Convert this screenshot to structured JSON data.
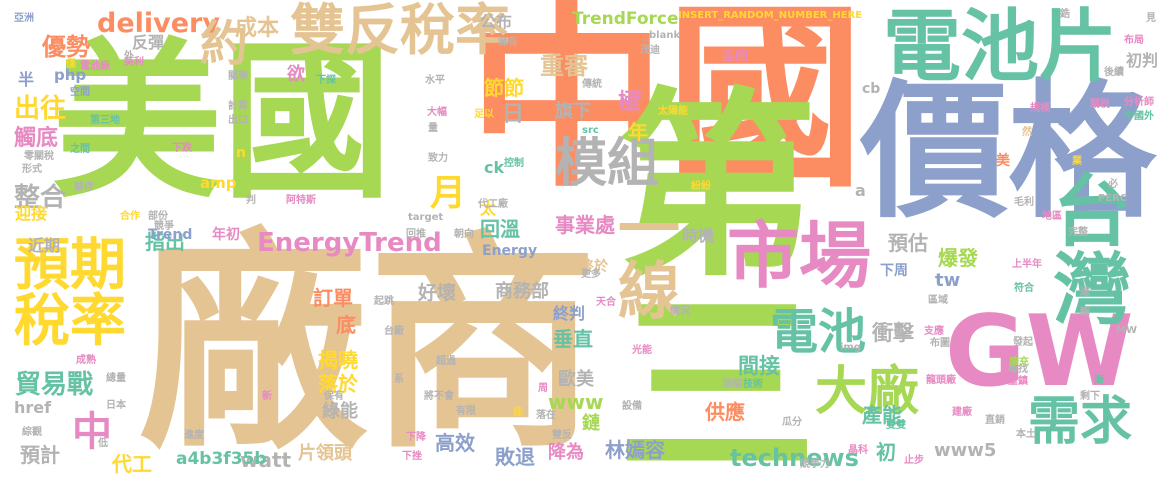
{
  "palette": {
    "orange": "#fc8d62",
    "green": "#a6d854",
    "blue": "#8da0cb",
    "teal": "#66c2a5",
    "pink": "#e78ac3",
    "yellow": "#ffd92f",
    "tan": "#e5c494",
    "gray": "#b3b3b3"
  },
  "words": [
    {
      "text": "中國",
      "color": "orange"
    },
    {
      "text": "廠商",
      "color": "tan"
    },
    {
      "text": "美國",
      "color": "green"
    },
    {
      "text": "價格",
      "color": "blue"
    },
    {
      "text": "第三",
      "color": "green"
    },
    {
      "text": "GW",
      "color": "pink"
    },
    {
      "text": "電池片",
      "color": "teal"
    },
    {
      "text": "台灣",
      "color": "teal"
    },
    {
      "text": "市場",
      "color": "pink"
    },
    {
      "text": "一線",
      "color": "tan"
    },
    {
      "text": "雙反稅率",
      "color": "tan"
    },
    {
      "text": "模組",
      "color": "gray"
    },
    {
      "text": "預期",
      "color": "yellow"
    },
    {
      "text": "稅率",
      "color": "yellow"
    },
    {
      "text": "需求",
      "color": "teal"
    },
    {
      "text": "電池",
      "color": "teal"
    },
    {
      "text": "大廠",
      "color": "green"
    },
    {
      "text": "EnergyTrend",
      "color": "pink"
    },
    {
      "text": "delivery",
      "color": "orange"
    },
    {
      "text": "約",
      "color": "tan"
    },
    {
      "text": "月",
      "color": "yellow"
    },
    {
      "text": "中",
      "color": "pink"
    },
    {
      "text": "優勢",
      "color": "orange"
    },
    {
      "text": "出往",
      "color": "yellow"
    },
    {
      "text": "整合",
      "color": "gray"
    },
    {
      "text": "貿易戰",
      "color": "teal"
    },
    {
      "text": "technews",
      "color": "teal"
    },
    {
      "text": "TrendForce",
      "color": "green"
    },
    {
      "text": "成本",
      "color": "tan"
    },
    {
      "text": "重審",
      "color": "tan"
    },
    {
      "text": "極",
      "color": "pink"
    },
    {
      "text": "年",
      "color": "yellow"
    },
    {
      "text": "日",
      "color": "gray"
    },
    {
      "text": "節節",
      "color": "yellow"
    },
    {
      "text": "旗下",
      "color": "gray"
    },
    {
      "text": "事業處",
      "color": "pink"
    },
    {
      "text": "回溫",
      "color": "teal"
    },
    {
      "text": "指出",
      "color": "teal"
    },
    {
      "text": "預估",
      "color": "gray"
    },
    {
      "text": "爆發",
      "color": "green"
    },
    {
      "text": "衝擊",
      "color": "gray"
    },
    {
      "text": "產能",
      "color": "teal"
    },
    {
      "text": "間接",
      "color": "teal"
    },
    {
      "text": "供應",
      "color": "orange"
    },
    {
      "text": "初",
      "color": "teal"
    },
    {
      "text": "商務部",
      "color": "gray"
    },
    {
      "text": "好壞",
      "color": "gray"
    },
    {
      "text": "訂單",
      "color": "orange"
    },
    {
      "text": "底",
      "color": "orange"
    },
    {
      "text": "揭曉",
      "color": "yellow"
    },
    {
      "text": "落於",
      "color": "yellow"
    },
    {
      "text": "綠能",
      "color": "gray"
    },
    {
      "text": "片領頭",
      "color": "tan"
    },
    {
      "text": "watt",
      "color": "gray"
    },
    {
      "text": "a4b3f35b",
      "color": "teal"
    },
    {
      "text": "代工",
      "color": "yellow"
    },
    {
      "text": "預計",
      "color": "gray"
    },
    {
      "text": "高效",
      "color": "blue"
    },
    {
      "text": "敗退",
      "color": "blue"
    },
    {
      "text": "降為",
      "color": "pink"
    },
    {
      "text": "林嫣容",
      "color": "blue"
    },
    {
      "text": "垂直",
      "color": "teal"
    },
    {
      "text": "終判",
      "color": "blue"
    },
    {
      "text": "歐美",
      "color": "gray"
    },
    {
      "text": "www",
      "color": "green"
    },
    {
      "text": "www5",
      "color": "gray"
    },
    {
      "text": "tw",
      "color": "blue"
    },
    {
      "text": "下周",
      "color": "blue"
    },
    {
      "text": "時機",
      "color": "gray"
    },
    {
      "text": "年初",
      "color": "pink"
    },
    {
      "text": "Trend",
      "color": "blue"
    },
    {
      "text": "Energy",
      "color": "blue"
    },
    {
      "text": "ck",
      "color": "teal"
    },
    {
      "text": "amp",
      "color": "yellow"
    },
    {
      "text": "php",
      "color": "blue"
    },
    {
      "text": "半",
      "color": "blue"
    },
    {
      "text": "反彈",
      "color": "gray"
    },
    {
      "text": "觸底",
      "color": "pink"
    },
    {
      "text": "迎接",
      "color": "yellow"
    },
    {
      "text": "近期",
      "color": "gray"
    },
    {
      "text": "href",
      "color": "gray"
    },
    {
      "text": "公布",
      "color": "gray"
    },
    {
      "text": "初判",
      "color": "gray"
    },
    {
      "text": "區間",
      "color": "pink"
    },
    {
      "text": "cb",
      "color": "gray"
    },
    {
      "text": "美",
      "color": "orange"
    },
    {
      "text": "a",
      "color": "gray"
    },
    {
      "text": "n",
      "color": "yellow"
    },
    {
      "text": "太",
      "color": "yellow"
    },
    {
      "text": "鏈",
      "color": "green"
    },
    {
      "text": "終於",
      "color": "tan"
    },
    {
      "text": "INSERT_RANDOM_NUMBER_HERE",
      "color": "yellow"
    },
    {
      "text": "_blank",
      "color": "gray"
    },
    {
      "text": "茂迪",
      "color": "gray"
    },
    {
      "text": "亞洲",
      "color": "blue"
    },
    {
      "text": "電池廠",
      "color": "pink"
    },
    {
      "text": "英利",
      "color": "pink"
    },
    {
      "text": "關聯",
      "color": "gray"
    },
    {
      "text": "外",
      "color": "gray"
    },
    {
      "text": "僅",
      "color": "yellow"
    },
    {
      "text": "空間",
      "color": "blue"
    },
    {
      "text": "計算",
      "color": "gray"
    },
    {
      "text": "出口",
      "color": "gray"
    },
    {
      "text": "第三地",
      "color": "teal"
    },
    {
      "text": "下跌",
      "color": "pink"
    },
    {
      "text": "之間",
      "color": "teal"
    },
    {
      "text": "形式",
      "color": "gray"
    },
    {
      "text": "夥伴",
      "color": "gray"
    },
    {
      "text": "零關稅",
      "color": "gray"
    },
    {
      "text": "合作",
      "color": "yellow"
    },
    {
      "text": "部份",
      "color": "gray"
    },
    {
      "text": "判",
      "color": "gray"
    },
    {
      "text": "阿特斯",
      "color": "pink"
    },
    {
      "text": "競爭",
      "color": "gray"
    },
    {
      "text": "欲",
      "color": "pink"
    },
    {
      "text": "水平",
      "color": "gray"
    },
    {
      "text": "下探",
      "color": "teal"
    },
    {
      "text": "大幅",
      "color": "pink"
    },
    {
      "text": "足以",
      "color": "yellow"
    },
    {
      "text": "量",
      "color": "gray"
    },
    {
      "text": "致力",
      "color": "gray"
    },
    {
      "text": "控制",
      "color": "teal"
    },
    {
      "text": "更多",
      "color": "gray"
    },
    {
      "text": "代工廠",
      "color": "gray"
    },
    {
      "text": "朝向",
      "color": "gray"
    },
    {
      "text": "回推",
      "color": "gray"
    },
    {
      "text": "target",
      "color": "gray"
    },
    {
      "text": "擁有",
      "color": "gray"
    },
    {
      "text": "傳統",
      "color": "gray"
    },
    {
      "text": "太陽能",
      "color": "yellow"
    },
    {
      "text": "主",
      "color": "pink"
    },
    {
      "text": "src",
      "color": "teal"
    },
    {
      "text": "紛紛",
      "color": "yellow"
    },
    {
      "text": "見",
      "color": "gray"
    },
    {
      "text": "布局",
      "color": "pink"
    },
    {
      "text": "後續",
      "color": "gray"
    },
    {
      "text": "分析師",
      "color": "pink"
    },
    {
      "text": "中國外",
      "color": "teal"
    },
    {
      "text": "關稅",
      "color": "pink"
    },
    {
      "text": "規模",
      "color": "pink"
    },
    {
      "text": "然",
      "color": "tan"
    },
    {
      "text": "業",
      "color": "yellow"
    },
    {
      "text": "必",
      "color": "gray"
    },
    {
      "text": "PERC",
      "color": "gray"
    },
    {
      "text": "毛利",
      "color": "gray"
    },
    {
      "text": "地區",
      "color": "pink"
    },
    {
      "text": "完整",
      "color": "gray"
    },
    {
      "text": "鋯",
      "color": "gray"
    },
    {
      "text": "上半年",
      "color": "pink"
    },
    {
      "text": "區域",
      "color": "gray"
    },
    {
      "text": "符合",
      "color": "teal"
    },
    {
      "text": "達",
      "color": "gray"
    },
    {
      "text": "輸",
      "color": "gray"
    },
    {
      "text": "MW",
      "color": "gray"
    },
    {
      "text": "支應",
      "color": "pink"
    },
    {
      "text": "布圖",
      "color": "gray"
    },
    {
      "text": "發起",
      "color": "gray"
    },
    {
      "text": "尋找",
      "color": "gray"
    },
    {
      "text": "擴充",
      "color": "green"
    },
    {
      "text": "重鎮",
      "color": "pink"
    },
    {
      "text": "龍頭廠",
      "color": "pink"
    },
    {
      "text": "漸",
      "color": "teal"
    },
    {
      "text": "剩下",
      "color": "gray"
    },
    {
      "text": "建廠",
      "color": "pink"
    },
    {
      "text": "直銷",
      "color": "gray"
    },
    {
      "text": "本土",
      "color": "gray"
    },
    {
      "text": "雙雙",
      "color": "teal"
    },
    {
      "text": "晶科",
      "color": "pink"
    },
    {
      "text": "止步",
      "color": "pink"
    },
    {
      "text": "競爭力",
      "color": "gray"
    },
    {
      "text": "雙反",
      "color": "gray"
    },
    {
      "text": "瓜分",
      "color": "gray"
    },
    {
      "text": "設備",
      "color": "gray"
    },
    {
      "text": "落在",
      "color": "gray"
    },
    {
      "text": "佳",
      "color": "yellow"
    },
    {
      "text": "周",
      "color": "pink"
    },
    {
      "text": "漲幅",
      "color": "gray"
    },
    {
      "text": "技術",
      "color": "teal"
    },
    {
      "text": "光能",
      "color": "pink"
    },
    {
      "text": "情況",
      "color": "gray"
    },
    {
      "text": "天合",
      "color": "pink"
    },
    {
      "text": "起跳",
      "color": "gray"
    },
    {
      "text": "台廠",
      "color": "gray"
    },
    {
      "text": "超過",
      "color": "gray"
    },
    {
      "text": "將不會",
      "color": "gray"
    },
    {
      "text": "有限",
      "color": "gray"
    },
    {
      "text": "保有",
      "color": "gray"
    },
    {
      "text": "系",
      "color": "gray"
    },
    {
      "text": "新",
      "color": "pink"
    },
    {
      "text": "下降",
      "color": "pink"
    },
    {
      "text": "下挫",
      "color": "pink"
    },
    {
      "text": "進度",
      "color": "gray"
    },
    {
      "text": "低",
      "color": "gray"
    },
    {
      "text": "綜觀",
      "color": "gray"
    },
    {
      "text": "日本",
      "color": "gray"
    },
    {
      "text": "總量",
      "color": "gray"
    },
    {
      "text": "成熟",
      "color": "pink"
    },
    {
      "text": "img",
      "color": "gray"
    }
  ]
}
